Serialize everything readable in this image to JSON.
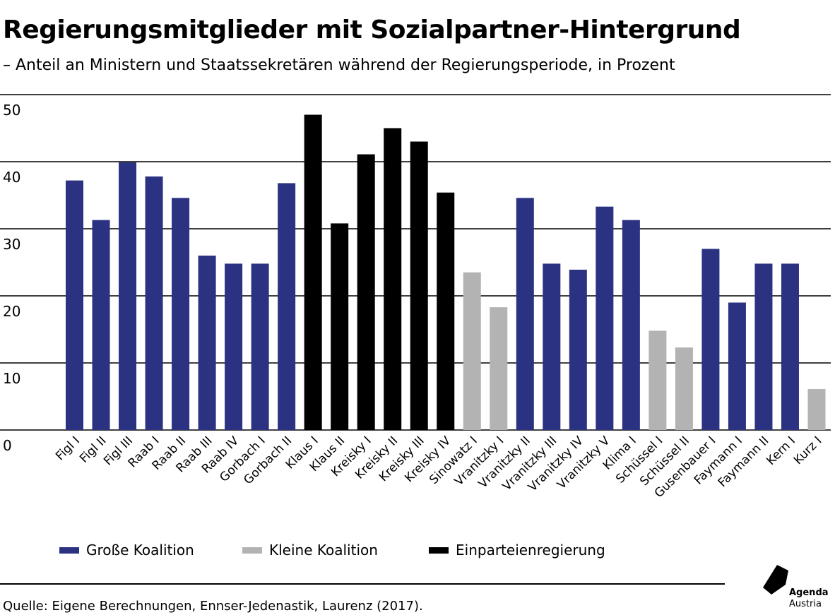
{
  "title": "Regierungsmitglieder mit Sozialpartner-Hintergrund",
  "subtitle": "– Anteil an Ministern und Staatssekretären während der Regierungsperiode, in Prozent",
  "source": "Quelle: Eigene Berechnungen, Ennser-Jedenastik, Laurenz (2017).",
  "logo": {
    "line1": "Agenda",
    "line2": "Austria"
  },
  "colors": {
    "gross": "#2b3282",
    "klein": "#b3b3b3",
    "einpartei": "#000000"
  },
  "legend": [
    {
      "key": "gross",
      "label": "Große Koalition"
    },
    {
      "key": "klein",
      "label": "Kleine Koalition"
    },
    {
      "key": "einpartei",
      "label": "Einparteienregierung"
    }
  ],
  "chart_data": {
    "type": "bar",
    "ylim": [
      0,
      50
    ],
    "yticks": [
      "0",
      "10",
      "20",
      "30",
      "40",
      "50"
    ],
    "grid": true,
    "legend_position": "bottom",
    "categories": [
      "Figl I",
      "Figl II",
      "Figl III",
      "Raab I",
      "Raab II",
      "Raab III",
      "Raab IV",
      "Gorbach I",
      "Gorbach II",
      "Klaus I",
      "Klaus II",
      "Kreisky I",
      "Kreisky II",
      "Kreisky III",
      "Kreisky IV",
      "Sinowatz I",
      "Vranitzky I",
      "Vranitzky II",
      "Vranitzky III",
      "Vranitzky IV",
      "Vranitzky V",
      "Klima I",
      "Schüssel I",
      "Schüssel II",
      "Gusenbauer I",
      "Faymann I",
      "Faymann II",
      "Kern I",
      "Kurz I"
    ],
    "values": [
      37.2,
      31.3,
      39.9,
      37.8,
      34.6,
      26.0,
      24.8,
      24.8,
      36.8,
      47.0,
      30.8,
      41.1,
      45.0,
      43.0,
      35.4,
      23.5,
      18.3,
      34.6,
      24.8,
      23.9,
      33.3,
      31.3,
      14.8,
      12.3,
      27.0,
      19.0,
      24.8,
      24.8,
      6.1
    ],
    "groups": [
      "gross",
      "gross",
      "gross",
      "gross",
      "gross",
      "gross",
      "gross",
      "gross",
      "gross",
      "einpartei",
      "einpartei",
      "einpartei",
      "einpartei",
      "einpartei",
      "einpartei",
      "klein",
      "klein",
      "gross",
      "gross",
      "gross",
      "gross",
      "gross",
      "klein",
      "klein",
      "gross",
      "gross",
      "gross",
      "gross",
      "klein"
    ]
  }
}
